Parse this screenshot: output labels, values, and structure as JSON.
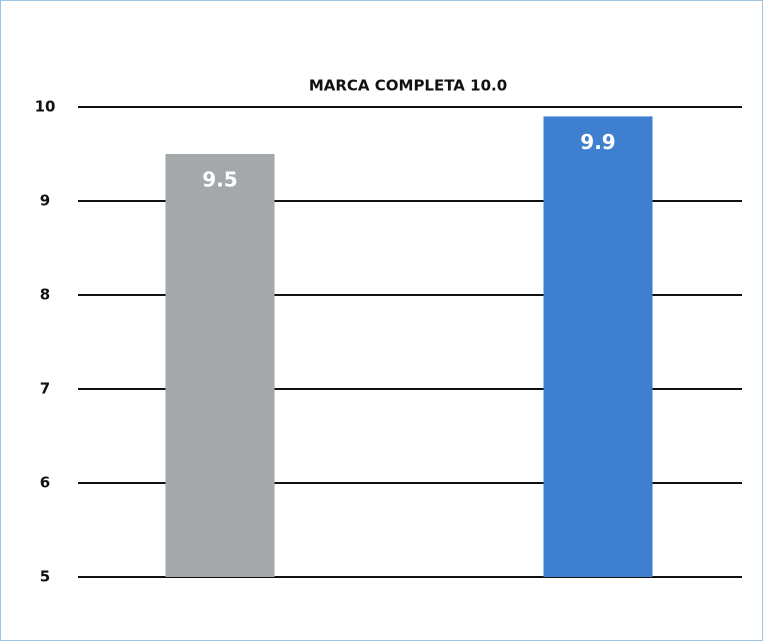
{
  "chart_data": {
    "type": "bar",
    "title": "MARCA COMPLETA 10.0",
    "categories": [
      null,
      null
    ],
    "values": [
      9.5,
      9.9
    ],
    "colors": [
      "#a5a8aa",
      "#3e7fcf"
    ],
    "ylim": [
      5,
      10
    ],
    "yticks": [
      5,
      6,
      7,
      8,
      9,
      10
    ],
    "grid": true
  }
}
